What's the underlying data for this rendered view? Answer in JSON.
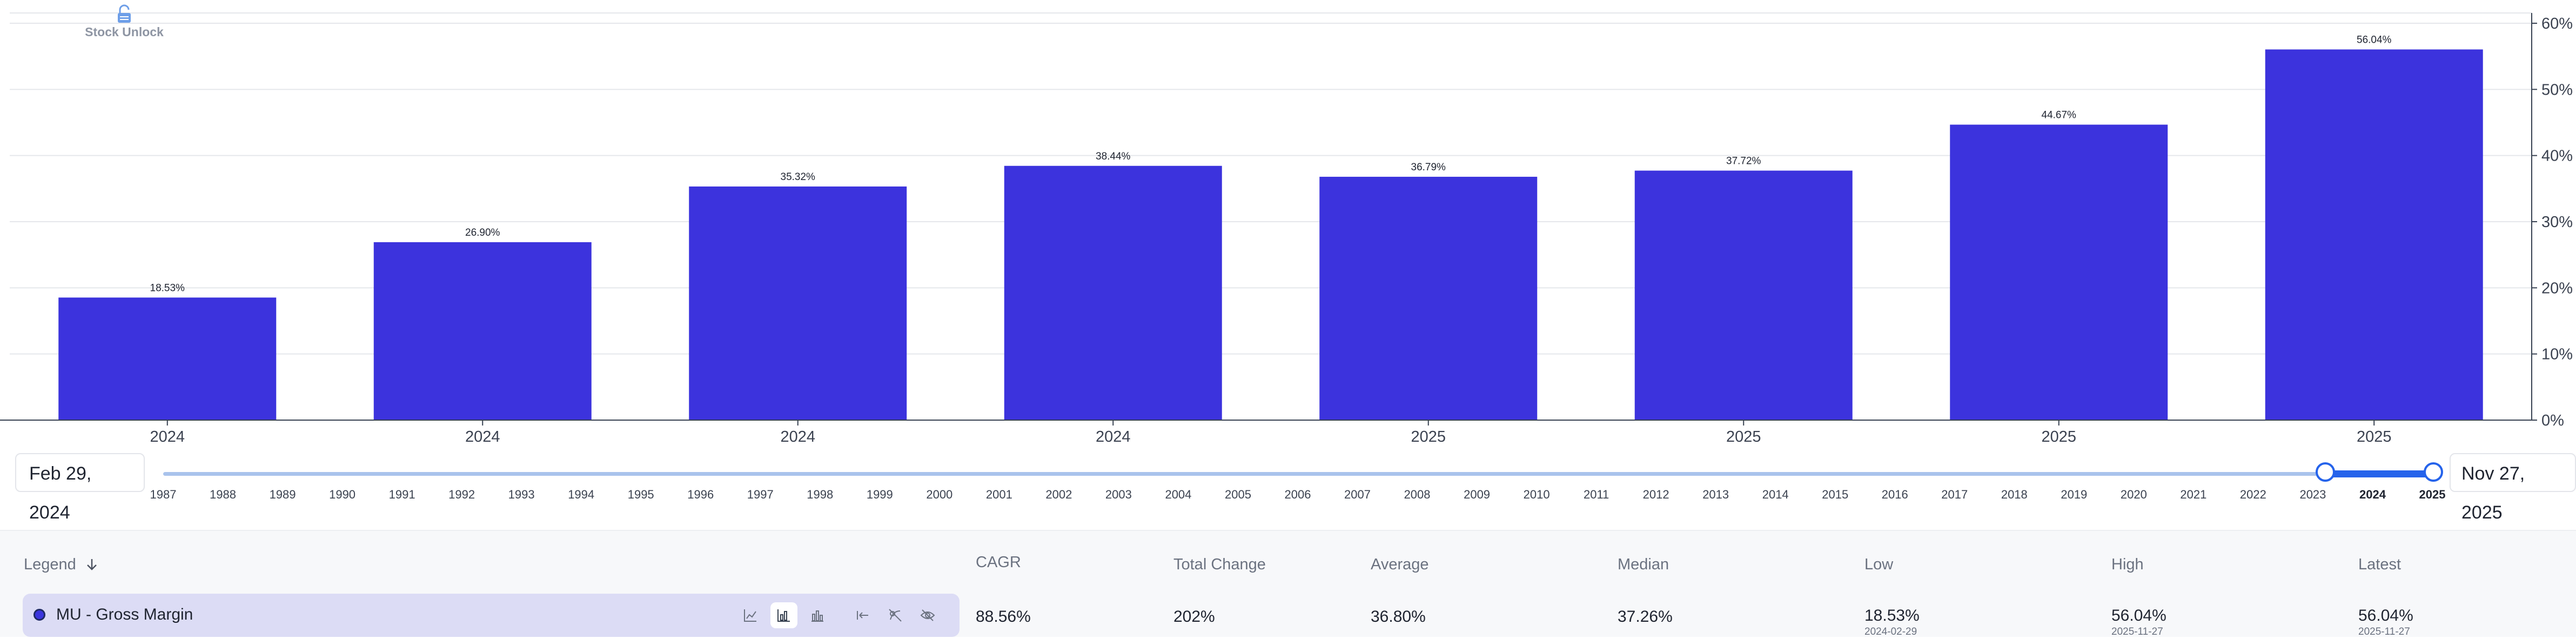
{
  "brand": {
    "name": "Stock Unlock",
    "icon": "lock-open-icon",
    "color": "#6d9ee8"
  },
  "chart_data": {
    "type": "bar",
    "categories": [
      "2024",
      "2024",
      "2024",
      "2024",
      "2025",
      "2025",
      "2025",
      "2025"
    ],
    "series": [
      {
        "values": [
          18.53,
          26.9,
          35.32,
          38.44,
          36.79,
          37.72,
          44.67,
          56.04
        ],
        "value_labels": [
          "18.53%",
          "26.90%",
          "35.32%",
          "38.44%",
          "36.79%",
          "37.72%",
          "44.67%",
          "56.04%"
        ]
      }
    ],
    "ylim": [
      0,
      60
    ],
    "y_ticks": [
      "0%",
      "10%",
      "20%",
      "30%",
      "40%",
      "50%",
      "60%"
    ],
    "y_axis_side": "right",
    "grid": true,
    "bar_color": "#3c33dd"
  },
  "range": {
    "start": "Feb 29, 2024",
    "end": "Nov 27, 2025",
    "years": [
      "1987",
      "1988",
      "1989",
      "1990",
      "1991",
      "1992",
      "1993",
      "1994",
      "1995",
      "1996",
      "1997",
      "1998",
      "1999",
      "2000",
      "2001",
      "2002",
      "2003",
      "2004",
      "2005",
      "2006",
      "2007",
      "2008",
      "2009",
      "2010",
      "2011",
      "2012",
      "2013",
      "2014",
      "2015",
      "2016",
      "2017",
      "2018",
      "2019",
      "2020",
      "2021",
      "2022",
      "2023",
      "2024",
      "2025"
    ],
    "selected": [
      "2024",
      "2025"
    ],
    "accent": "#2563eb"
  },
  "table": {
    "legend_header": "Legend",
    "sort_icon": "arrow-down-icon",
    "columns": [
      "CAGR",
      "Total Change",
      "Average",
      "Median",
      "Low",
      "High",
      "Latest"
    ],
    "row": {
      "label": "MU - Gross Margin",
      "color": "#3b35de",
      "tools": [
        "line-chart-icon",
        "bar-chart-icon",
        "grouped-bar-icon",
        "arrow-left-bar-icon",
        "hide-axis-icon",
        "hide-eye-icon"
      ],
      "active_tool": "bar-chart-icon",
      "values": [
        "88.56%",
        "202%",
        "36.80%",
        "37.26%",
        "18.53%",
        "56.04%",
        "56.04%"
      ],
      "dates": [
        "",
        "",
        "",
        "",
        "2024-02-29",
        "2025-11-27",
        "2025-11-27"
      ]
    }
  }
}
